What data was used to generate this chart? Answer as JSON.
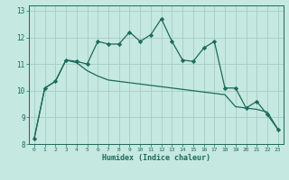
{
  "title": "",
  "xlabel": "Humidex (Indice chaleur)",
  "ylabel": "",
  "bg_color": "#c5e8e0",
  "line_color": "#1a6b5a",
  "grid_color": "#a8ccc5",
  "x_labels": [
    "0",
    "1",
    "2",
    "3",
    "4",
    "5",
    "6",
    "7",
    "8",
    "9",
    "10",
    "11",
    "12",
    "13",
    "14",
    "15",
    "16",
    "17",
    "18",
    "19",
    "20",
    "21",
    "22",
    "23"
  ],
  "ylim": [
    8,
    13.2
  ],
  "yticks": [
    8,
    9,
    10,
    11,
    12,
    13
  ],
  "series1_x": [
    0,
    1,
    2,
    3,
    4,
    5,
    6,
    7,
    8,
    9,
    10,
    11,
    12,
    13,
    14,
    15,
    16,
    17,
    18,
    19,
    20,
    21,
    22,
    23
  ],
  "series1_y": [
    8.2,
    10.1,
    10.35,
    11.15,
    11.1,
    11.0,
    11.85,
    11.75,
    11.75,
    12.2,
    11.85,
    12.1,
    12.7,
    11.85,
    11.15,
    11.1,
    11.6,
    11.85,
    10.1,
    10.1,
    9.35,
    9.6,
    9.1,
    8.55
  ],
  "series2_x": [
    0,
    1,
    2,
    3,
    4,
    5,
    6,
    7,
    8,
    9,
    10,
    11,
    12,
    13,
    14,
    15,
    16,
    17,
    18,
    19,
    20,
    21,
    22,
    23
  ],
  "series2_y": [
    8.2,
    10.1,
    10.35,
    11.15,
    11.05,
    10.75,
    10.55,
    10.4,
    10.35,
    10.3,
    10.25,
    10.2,
    10.15,
    10.1,
    10.05,
    10.0,
    9.95,
    9.9,
    9.85,
    9.4,
    9.35,
    9.3,
    9.2,
    8.55
  ],
  "marker": "D",
  "marker_size": 2.2,
  "linewidth": 0.9
}
